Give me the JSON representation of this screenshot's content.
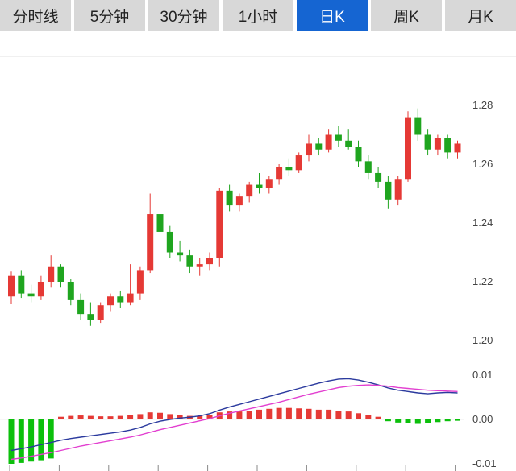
{
  "tabs": [
    {
      "label": "分时线",
      "active": false
    },
    {
      "label": "5分钟",
      "active": false
    },
    {
      "label": "30分钟",
      "active": false
    },
    {
      "label": "1小时",
      "active": false
    },
    {
      "label": "日K",
      "active": true
    },
    {
      "label": "周K",
      "active": false
    },
    {
      "label": "月K",
      "active": false
    }
  ],
  "colors": {
    "up": "#e53935",
    "down": "#1fa51f",
    "hist_up": "#e53935",
    "hist_down": "#0cc00c",
    "dif_line": "#2b3a9e",
    "dea_line": "#e23fd0",
    "tab_bg": "#d8d8d8",
    "tab_active_bg": "#1565d2",
    "grid": "#e0e0e0",
    "axis_text": "#444444"
  },
  "chart_data": {
    "type": "candlestick",
    "title": "",
    "xlabel": "",
    "ylabel": "",
    "panels": [
      {
        "name": "price",
        "grid": true,
        "yticks": [
          {
            "label": "1.28",
            "value": 1.28
          },
          {
            "label": "1.26",
            "value": 1.26
          },
          {
            "label": "1.24",
            "value": 1.24
          },
          {
            "label": "1.22",
            "value": 1.22
          },
          {
            "label": "1.20",
            "value": 1.2
          }
        ],
        "ylim": [
          1.195,
          1.3
        ],
        "candles_ohlc": [
          [
            1.215,
            1.2235,
            1.2125,
            1.222
          ],
          [
            1.222,
            1.224,
            1.2145,
            1.216
          ],
          [
            1.216,
            1.219,
            1.213,
            1.215
          ],
          [
            1.215,
            1.222,
            1.214,
            1.22
          ],
          [
            1.22,
            1.229,
            1.218,
            1.225
          ],
          [
            1.225,
            1.226,
            1.218,
            1.22
          ],
          [
            1.22,
            1.221,
            1.212,
            1.214
          ],
          [
            1.214,
            1.216,
            1.207,
            1.209
          ],
          [
            1.209,
            1.213,
            1.205,
            1.207
          ],
          [
            1.207,
            1.213,
            1.206,
            1.212
          ],
          [
            1.212,
            1.216,
            1.21,
            1.215
          ],
          [
            1.215,
            1.217,
            1.211,
            1.213
          ],
          [
            1.213,
            1.226,
            1.212,
            1.216
          ],
          [
            1.216,
            1.225,
            1.214,
            1.224
          ],
          [
            1.224,
            1.25,
            1.223,
            1.243
          ],
          [
            1.243,
            1.244,
            1.235,
            1.237
          ],
          [
            1.237,
            1.239,
            1.228,
            1.23
          ],
          [
            1.23,
            1.234,
            1.227,
            1.229
          ],
          [
            1.229,
            1.231,
            1.223,
            1.225
          ],
          [
            1.225,
            1.228,
            1.222,
            1.226
          ],
          [
            1.226,
            1.23,
            1.224,
            1.228
          ],
          [
            1.228,
            1.252,
            1.225,
            1.251
          ],
          [
            1.251,
            1.253,
            1.244,
            1.246
          ],
          [
            1.246,
            1.25,
            1.244,
            1.249
          ],
          [
            1.249,
            1.254,
            1.247,
            1.253
          ],
          [
            1.253,
            1.257,
            1.25,
            1.252
          ],
          [
            1.252,
            1.256,
            1.25,
            1.255
          ],
          [
            1.255,
            1.26,
            1.253,
            1.259
          ],
          [
            1.259,
            1.262,
            1.256,
            1.258
          ],
          [
            1.258,
            1.264,
            1.257,
            1.263
          ],
          [
            1.263,
            1.27,
            1.261,
            1.267
          ],
          [
            1.267,
            1.269,
            1.263,
            1.265
          ],
          [
            1.265,
            1.272,
            1.264,
            1.27
          ],
          [
            1.27,
            1.273,
            1.266,
            1.268
          ],
          [
            1.268,
            1.272,
            1.265,
            1.266
          ],
          [
            1.266,
            1.268,
            1.259,
            1.261
          ],
          [
            1.261,
            1.263,
            1.255,
            1.257
          ],
          [
            1.257,
            1.259,
            1.252,
            1.254
          ],
          [
            1.254,
            1.256,
            1.245,
            1.248
          ],
          [
            1.248,
            1.256,
            1.246,
            1.255
          ],
          [
            1.255,
            1.278,
            1.254,
            1.276
          ],
          [
            1.276,
            1.279,
            1.268,
            1.27
          ],
          [
            1.27,
            1.272,
            1.263,
            1.265
          ],
          [
            1.265,
            1.27,
            1.263,
            1.269
          ],
          [
            1.269,
            1.27,
            1.262,
            1.264
          ],
          [
            1.264,
            1.268,
            1.262,
            1.267
          ]
        ]
      },
      {
        "name": "macd",
        "grid": true,
        "yticks": [
          {
            "label": "0.01",
            "value": 0.01
          },
          {
            "label": "0.00",
            "value": 0.0
          },
          {
            "label": "-0.01",
            "value": -0.01
          }
        ],
        "ylim": [
          -0.012,
          0.012
        ],
        "histogram": [
          -0.01,
          -0.0098,
          -0.0095,
          -0.0092,
          -0.0088,
          0.0006,
          0.0008,
          0.0009,
          0.0008,
          0.0007,
          0.0007,
          0.0008,
          0.001,
          0.0012,
          0.0016,
          0.0015,
          0.0012,
          0.001,
          0.0008,
          0.0008,
          0.001,
          0.0016,
          0.0018,
          0.0018,
          0.002,
          0.0022,
          0.0024,
          0.0026,
          0.0026,
          0.0025,
          0.0024,
          0.0022,
          0.0022,
          0.002,
          0.0018,
          0.0014,
          0.001,
          0.0006,
          -0.0004,
          -0.0007,
          -0.0009,
          -0.001,
          -0.0008,
          -0.0006,
          -0.0004,
          -0.0003
        ],
        "series": [
          {
            "name": "DIF",
            "color": "#2b3a9e",
            "values": [
              -0.007,
              -0.0066,
              -0.0062,
              -0.0057,
              -0.0052,
              -0.0047,
              -0.0043,
              -0.004,
              -0.0037,
              -0.0034,
              -0.0031,
              -0.0028,
              -0.0024,
              -0.0018,
              -0.001,
              -0.0004,
              0.0,
              0.0003,
              0.0005,
              0.0008,
              0.0013,
              0.0021,
              0.0028,
              0.0034,
              0.004,
              0.0046,
              0.0052,
              0.0058,
              0.0064,
              0.007,
              0.0076,
              0.0082,
              0.0087,
              0.0091,
              0.0092,
              0.0089,
              0.0084,
              0.0078,
              0.0071,
              0.0066,
              0.0063,
              0.006,
              0.0058,
              0.006,
              0.0061,
              0.006
            ]
          },
          {
            "name": "DEA",
            "color": "#e23fd0",
            "values": [
              -0.009,
              -0.0087,
              -0.0083,
              -0.0079,
              -0.0075,
              -0.007,
              -0.0065,
              -0.006,
              -0.0056,
              -0.0052,
              -0.0048,
              -0.0044,
              -0.004,
              -0.0035,
              -0.0029,
              -0.0023,
              -0.0018,
              -0.0013,
              -0.0008,
              -0.0003,
              0.0002,
              0.0008,
              0.0014,
              0.0019,
              0.0024,
              0.0029,
              0.0034,
              0.0039,
              0.0045,
              0.0051,
              0.0057,
              0.0062,
              0.0067,
              0.0072,
              0.0075,
              0.0077,
              0.0078,
              0.0077,
              0.0075,
              0.0072,
              0.007,
              0.0068,
              0.0066,
              0.0065,
              0.0064,
              0.0063
            ]
          }
        ]
      }
    ]
  }
}
